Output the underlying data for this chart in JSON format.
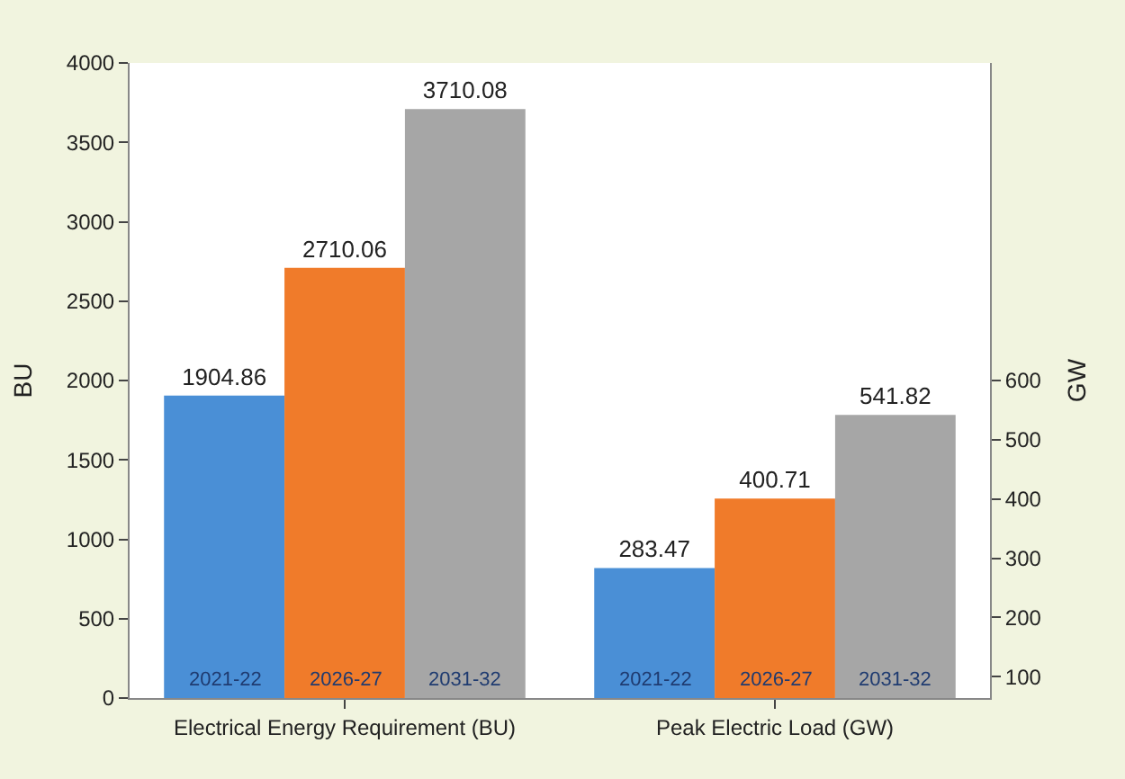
{
  "chart_data": {
    "type": "bar",
    "ylabel": "BU",
    "y2label": "GW",
    "categories": [
      "Electrical Energy Requirement (BU)",
      "Peak Electric Load (GW)"
    ],
    "series": [
      {
        "name": "2021-22",
        "color": "#4a8fd6",
        "values": [
          1904.86,
          null
        ]
      },
      {
        "name": "2026-27",
        "color": "#f07b2a",
        "values": [
          2710.06,
          null
        ]
      },
      {
        "name": "2031-32",
        "color": "#a6a6a6",
        "values": [
          3710.08,
          null
        ]
      },
      {
        "name": "2021-22",
        "color": "#4a8fd6",
        "values": [
          null,
          283.47
        ],
        "axis": "y2"
      },
      {
        "name": "2026-27",
        "color": "#f07b2a",
        "values": [
          null,
          400.71
        ],
        "axis": "y2"
      },
      {
        "name": "2031-32",
        "color": "#a6a6a6",
        "values": [
          null,
          541.82
        ],
        "axis": "y2"
      }
    ],
    "ylim": [
      0,
      4000
    ],
    "yticks": [
      0,
      500,
      1000,
      1500,
      2000,
      2500,
      3000,
      3500,
      4000
    ],
    "y2lim": [
      64,
      1136
    ],
    "y2ticks": [
      100,
      200,
      300,
      400,
      500,
      600
    ],
    "data_labels": true,
    "legend": false
  }
}
